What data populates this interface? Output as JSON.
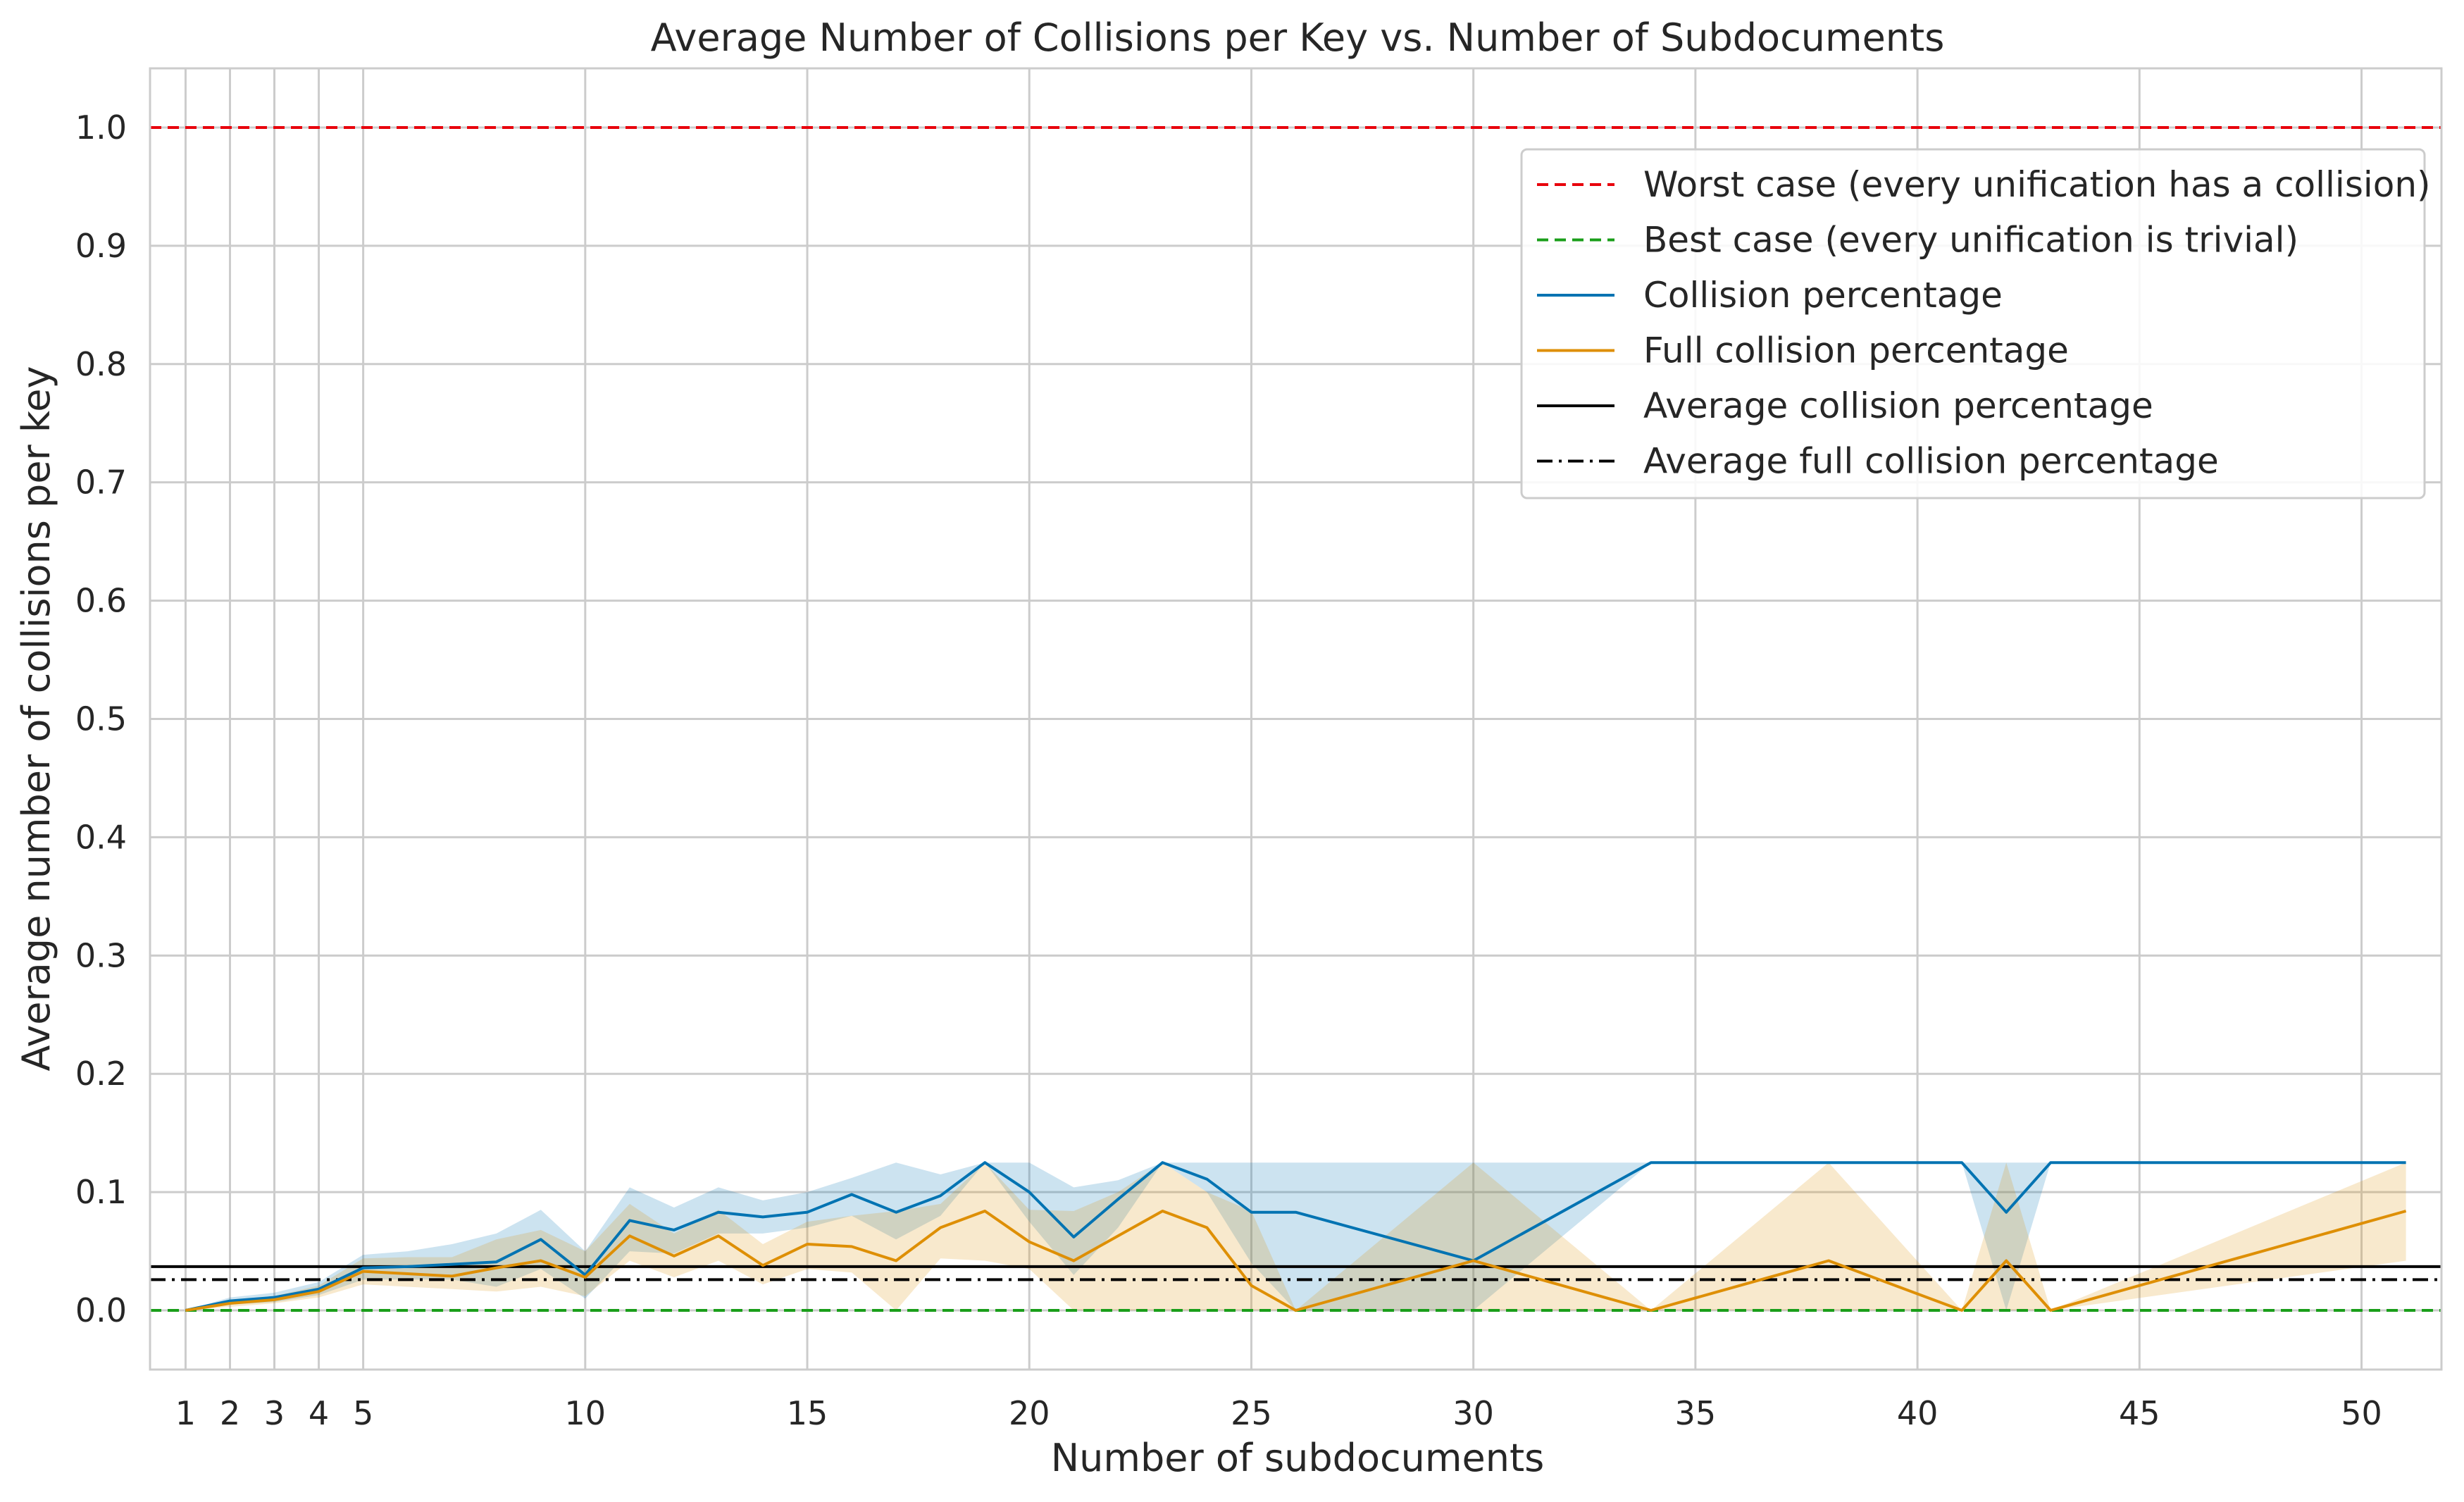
{
  "chart_data": {
    "type": "line",
    "title": "Average Number of Collisions per Key vs. Number of Subdocuments",
    "xlabel": "Number of subdocuments",
    "ylabel": "Average number of collisions per key",
    "xlim": [
      0.2,
      51.8
    ],
    "ylim": [
      -0.05,
      1.05
    ],
    "grid": true,
    "legend_position": "top-right",
    "xticks": [
      1,
      2,
      3,
      4,
      5,
      10,
      15,
      20,
      25,
      30,
      35,
      40,
      45,
      50
    ],
    "yticks": [
      0.0,
      0.1,
      0.2,
      0.3,
      0.4,
      0.5,
      0.6,
      0.7,
      0.8,
      0.9,
      1.0
    ],
    "colors": {
      "worst": "#e8000b",
      "best": "#1a9e1a",
      "collision": "#0173b2",
      "full": "#de8f05",
      "avg": "#000000",
      "grid": "#cccccc"
    },
    "series": [
      {
        "name": "Collision percentage",
        "x": [
          1,
          2,
          3,
          4,
          5,
          6,
          7,
          8,
          9,
          10,
          11,
          12,
          13,
          14,
          15,
          16,
          17,
          18,
          19,
          20,
          21,
          22,
          23,
          24,
          25,
          26,
          30,
          34,
          38,
          41,
          42,
          43,
          51
        ],
        "y": [
          0.0,
          0.008,
          0.011,
          0.018,
          0.036,
          0.037,
          0.039,
          0.041,
          0.06,
          0.03,
          0.076,
          0.068,
          0.083,
          0.079,
          0.083,
          0.098,
          0.083,
          0.097,
          0.125,
          0.1,
          0.062,
          0.094,
          0.125,
          0.111,
          0.083,
          0.083,
          0.042,
          0.125,
          0.125,
          0.125,
          0.083,
          0.125,
          0.125
        ],
        "lower": [
          0.0,
          0.005,
          0.007,
          0.013,
          0.026,
          0.026,
          0.026,
          0.02,
          0.035,
          0.01,
          0.05,
          0.048,
          0.065,
          0.065,
          0.07,
          0.08,
          0.06,
          0.08,
          0.125,
          0.075,
          0.03,
          0.07,
          0.125,
          0.1,
          0.04,
          0.0,
          0.0,
          0.125,
          0.125,
          0.125,
          0.0,
          0.125,
          0.125
        ],
        "upper": [
          0.0,
          0.011,
          0.015,
          0.024,
          0.047,
          0.05,
          0.056,
          0.065,
          0.085,
          0.05,
          0.104,
          0.087,
          0.104,
          0.093,
          0.1,
          0.112,
          0.125,
          0.115,
          0.125,
          0.125,
          0.104,
          0.11,
          0.125,
          0.125,
          0.125,
          0.125,
          0.125,
          0.125,
          0.125,
          0.125,
          0.125,
          0.125,
          0.125
        ]
      },
      {
        "name": "Full collision percentage",
        "x": [
          1,
          2,
          3,
          4,
          5,
          6,
          7,
          8,
          9,
          10,
          11,
          12,
          13,
          14,
          15,
          16,
          17,
          18,
          19,
          20,
          21,
          22,
          23,
          24,
          25,
          26,
          30,
          34,
          38,
          41,
          42,
          43,
          51
        ],
        "y": [
          0.0,
          0.006,
          0.009,
          0.016,
          0.033,
          0.031,
          0.029,
          0.036,
          0.042,
          0.028,
          0.063,
          0.046,
          0.063,
          0.038,
          0.056,
          0.054,
          0.042,
          0.07,
          0.084,
          0.058,
          0.042,
          0.063,
          0.084,
          0.07,
          0.021,
          0.0,
          0.042,
          0.0,
          0.042,
          0.0,
          0.042,
          0.0,
          0.084
        ],
        "lower": [
          0.0,
          0.003,
          0.006,
          0.011,
          0.022,
          0.02,
          0.018,
          0.016,
          0.02,
          0.012,
          0.042,
          0.028,
          0.042,
          0.022,
          0.035,
          0.032,
          0.0,
          0.044,
          0.042,
          0.035,
          0.0,
          0.0,
          0.0,
          0.0,
          0.0,
          0.0,
          0.0,
          0.0,
          0.0,
          0.0,
          0.0,
          0.0,
          0.042
        ],
        "upper": [
          0.0,
          0.009,
          0.012,
          0.021,
          0.044,
          0.045,
          0.045,
          0.06,
          0.068,
          0.05,
          0.09,
          0.065,
          0.085,
          0.056,
          0.075,
          0.08,
          0.084,
          0.09,
          0.125,
          0.085,
          0.084,
          0.1,
          0.125,
          0.1,
          0.084,
          0.0,
          0.125,
          0.0,
          0.125,
          0.0,
          0.125,
          0.0,
          0.125
        ]
      }
    ],
    "reference_lines": [
      {
        "name": "Worst case (every unification has a collision)",
        "y": 1.0,
        "style": "dashed",
        "color": "#e8000b"
      },
      {
        "name": "Best case (every unification is trivial)",
        "y": 0.0,
        "style": "dashed",
        "color": "#1a9e1a"
      },
      {
        "name": "Average collision percentage",
        "y": 0.037,
        "style": "solid",
        "color": "#000000"
      },
      {
        "name": "Average full collision percentage",
        "y": 0.026,
        "style": "dashdot",
        "color": "#000000"
      }
    ],
    "legend": [
      "Worst case (every unification has a collision)",
      "Best case (every unification is trivial)",
      "Collision percentage",
      "Full collision percentage",
      "Average collision percentage",
      "Average full collision percentage"
    ]
  }
}
